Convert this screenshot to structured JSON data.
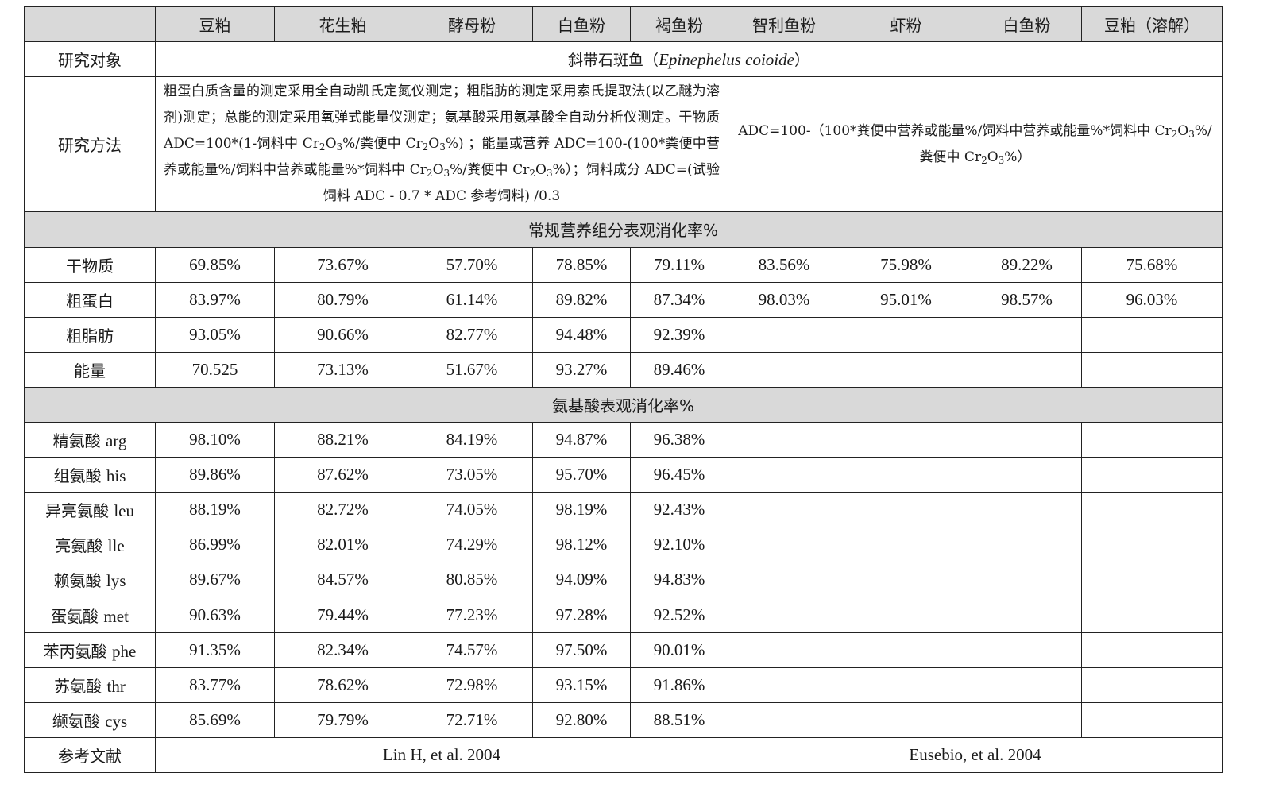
{
  "table": {
    "corner": "",
    "columns": [
      "豆粕",
      "花生粕",
      "酵母粉",
      "白鱼粉",
      "褐鱼粉",
      "智利鱼粉",
      "虾粉",
      "白鱼粉",
      "豆粕（溶解）"
    ],
    "subject_label": "研究对象",
    "subject_prefix": "斜带石斑鱼（",
    "subject_latin": "Epinephelus coioide",
    "subject_suffix": "）",
    "method_label": "研究方法",
    "method_left": {
      "p1": "粗蛋白质含量的测定采用全自动凯氏定氮仪测定；粗脂肪的测定采用索氏提取法(以乙醚为溶剂)测定；总能的测定采用氧弹式能量仪测定；氨基酸采用氨基酸全自动分析仪测定。干物质 ADC=100*(1-饲料中 Cr",
      "p2": "O",
      "p3": "%/粪便中 Cr",
      "p4": "O",
      "p5": "%) ；能量或营养 ADC=100-(100*粪便中营养或能量%/饲料中营养或能量%*饲料中 Cr",
      "p6": "O",
      "p7": "%/粪便中 Cr",
      "p8": "O",
      "p9": "%）；饲料成分 ADC=(试验饲料 ADC - 0.7 * ADC 参考饲料) /0.3"
    },
    "method_right": {
      "p1": "ADC=100-（100*粪便中营养或能量%/饲料中营养或能量%*饲料中 Cr",
      "p2": "O",
      "p3": "%/粪便中 Cr",
      "p4": "O",
      "p5": "%）"
    },
    "sub_2": "2",
    "sub_3": "3",
    "section1": "常规营养组分表观消化率%",
    "section2": "氨基酸表观消化率%",
    "rows1": [
      {
        "label": "干物质",
        "values": [
          "69.85%",
          "73.67%",
          "57.70%",
          "78.85%",
          "79.11%",
          "83.56%",
          "75.98%",
          "89.22%",
          "75.68%"
        ]
      },
      {
        "label": "粗蛋白",
        "values": [
          "83.97%",
          "80.79%",
          "61.14%",
          "89.82%",
          "87.34%",
          "98.03%",
          "95.01%",
          "98.57%",
          "96.03%"
        ]
      },
      {
        "label": "粗脂肪",
        "values": [
          "93.05%",
          "90.66%",
          "82.77%",
          "94.48%",
          "92.39%",
          "",
          "",
          "",
          ""
        ]
      },
      {
        "label": "能量",
        "values": [
          "70.525",
          "73.13%",
          "51.67%",
          "93.27%",
          "89.46%",
          "",
          "",
          "",
          ""
        ]
      }
    ],
    "rows2": [
      {
        "cn": "精氨酸",
        "en": "arg",
        "values": [
          "98.10%",
          "88.21%",
          "84.19%",
          "94.87%",
          "96.38%",
          "",
          "",
          "",
          ""
        ]
      },
      {
        "cn": "组氨酸",
        "en": "his",
        "values": [
          "89.86%",
          "87.62%",
          "73.05%",
          "95.70%",
          "96.45%",
          "",
          "",
          "",
          ""
        ]
      },
      {
        "cn": "异亮氨酸",
        "en": "leu",
        "values": [
          "88.19%",
          "82.72%",
          "74.05%",
          "98.19%",
          "92.43%",
          "",
          "",
          "",
          ""
        ]
      },
      {
        "cn": "亮氨酸",
        "en": "lle",
        "values": [
          "86.99%",
          "82.01%",
          "74.29%",
          "98.12%",
          "92.10%",
          "",
          "",
          "",
          ""
        ]
      },
      {
        "cn": "赖氨酸",
        "en": "lys",
        "values": [
          "89.67%",
          "84.57%",
          "80.85%",
          "94.09%",
          "94.83%",
          "",
          "",
          "",
          ""
        ]
      },
      {
        "cn": "蛋氨酸",
        "en": "met",
        "values": [
          "90.63%",
          "79.44%",
          "77.23%",
          "97.28%",
          "92.52%",
          "",
          "",
          "",
          ""
        ]
      },
      {
        "cn": "苯丙氨酸",
        "en": "phe",
        "values": [
          "91.35%",
          "82.34%",
          "74.57%",
          "97.50%",
          "90.01%",
          "",
          "",
          "",
          ""
        ]
      },
      {
        "cn": "苏氨酸",
        "en": "thr",
        "values": [
          "83.77%",
          "78.62%",
          "72.98%",
          "93.15%",
          "91.86%",
          "",
          "",
          "",
          ""
        ]
      },
      {
        "cn": "缬氨酸",
        "en": "cys",
        "values": [
          "85.69%",
          "79.79%",
          "72.71%",
          "92.80%",
          "88.51%",
          "",
          "",
          "",
          ""
        ]
      }
    ],
    "ref_label": "参考文献",
    "ref_left": "Lin H, et al. 2004",
    "ref_right": "Eusebio, et al. 2004"
  }
}
